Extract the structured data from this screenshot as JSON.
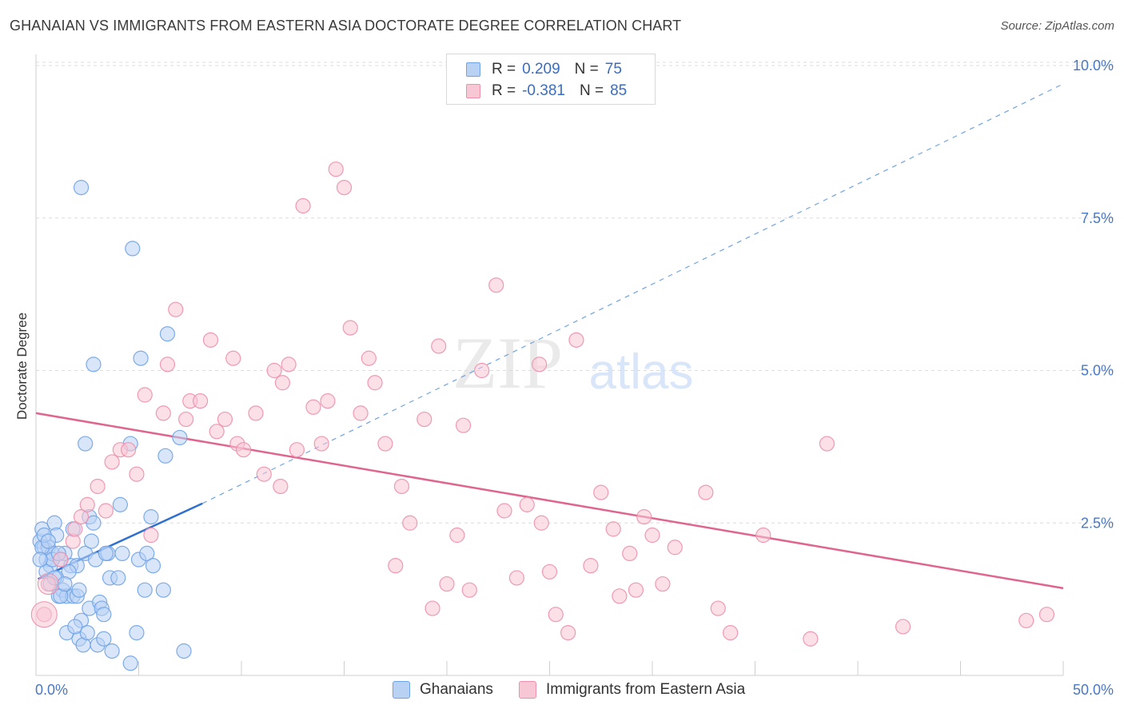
{
  "title": "GHANAIAN VS IMMIGRANTS FROM EASTERN ASIA DOCTORATE DEGREE CORRELATION CHART",
  "source": "Source: ZipAtlas.com",
  "watermark": {
    "zip": "ZIP",
    "atlas": "atlas"
  },
  "legend": {
    "r_label": "R =",
    "n_label": "N =",
    "series": [
      {
        "name": "Ghanaians",
        "r": "0.209",
        "n": "75",
        "color": "#6fa3e8",
        "fill": "#b9d2f4"
      },
      {
        "name": "Immigrants from Eastern Asia",
        "r": "-0.381",
        "n": "85",
        "color": "#ee8fab",
        "fill": "#f8c7d5"
      }
    ]
  },
  "chart_data": {
    "type": "scatter",
    "title": "GHANAIAN VS IMMIGRANTS FROM EASTERN ASIA DOCTORATE DEGREE CORRELATION CHART",
    "xlabel": "",
    "ylabel": "Doctorate Degree",
    "xlim": [
      0,
      50
    ],
    "ylim": [
      0,
      10
    ],
    "x_tick_labels": [
      "0.0%",
      "50.0%"
    ],
    "y_ticks": [
      2.5,
      5.0,
      7.5,
      10.0
    ],
    "y_tick_labels": [
      "2.5%",
      "5.0%",
      "7.5%",
      "10.0%"
    ],
    "grid": "dashed horizontal",
    "series": [
      {
        "name": "Ghanaians",
        "color": "#6fa3e8",
        "trend": {
          "x0": 0.1,
          "y0": 1.58,
          "x1": 8.1,
          "y1": 2.82,
          "x_dash_end": 50,
          "y_dash_end": 9.7
        },
        "points": [
          [
            0.2,
            2.2
          ],
          [
            0.3,
            2.4
          ],
          [
            0.4,
            2.1
          ],
          [
            0.5,
            1.9
          ],
          [
            0.6,
            2.1
          ],
          [
            0.7,
            1.8
          ],
          [
            0.8,
            2.0
          ],
          [
            0.9,
            2.5
          ],
          [
            1.0,
            2.3
          ],
          [
            1.0,
            1.6
          ],
          [
            1.1,
            1.3
          ],
          [
            1.2,
            1.9
          ],
          [
            1.3,
            1.4
          ],
          [
            1.4,
            2.0
          ],
          [
            1.5,
            1.3
          ],
          [
            1.5,
            0.7
          ],
          [
            1.7,
            1.8
          ],
          [
            1.8,
            1.3
          ],
          [
            1.8,
            2.4
          ],
          [
            2.0,
            1.8
          ],
          [
            2.0,
            1.3
          ],
          [
            2.1,
            0.6
          ],
          [
            2.2,
            0.9
          ],
          [
            2.3,
            0.5
          ],
          [
            2.4,
            2.0
          ],
          [
            2.5,
            0.7
          ],
          [
            2.6,
            2.6
          ],
          [
            2.6,
            1.1
          ],
          [
            2.7,
            2.2
          ],
          [
            2.8,
            2.5
          ],
          [
            2.9,
            1.9
          ],
          [
            3.0,
            0.5
          ],
          [
            3.1,
            1.2
          ],
          [
            3.2,
            1.1
          ],
          [
            3.3,
            0.6
          ],
          [
            3.3,
            1.0
          ],
          [
            3.5,
            2.0
          ],
          [
            3.6,
            1.6
          ],
          [
            3.7,
            0.4
          ],
          [
            4.0,
            1.6
          ],
          [
            4.1,
            2.8
          ],
          [
            4.2,
            2.0
          ],
          [
            4.6,
            0.2
          ],
          [
            4.6,
            3.8
          ],
          [
            4.9,
            0.7
          ],
          [
            5.0,
            1.9
          ],
          [
            5.1,
            5.2
          ],
          [
            5.3,
            1.4
          ],
          [
            5.4,
            2.0
          ],
          [
            5.6,
            2.6
          ],
          [
            5.7,
            1.8
          ],
          [
            6.2,
            1.4
          ],
          [
            6.3,
            3.6
          ],
          [
            6.4,
            5.6
          ],
          [
            7.0,
            3.9
          ],
          [
            7.2,
            0.4
          ],
          [
            2.2,
            8.0
          ],
          [
            4.7,
            7.0
          ],
          [
            2.8,
            5.1
          ],
          [
            2.4,
            3.8
          ],
          [
            0.3,
            2.1
          ],
          [
            0.5,
            1.7
          ],
          [
            0.7,
            1.5
          ],
          [
            0.9,
            1.6
          ],
          [
            1.2,
            1.3
          ],
          [
            1.6,
            1.7
          ],
          [
            1.9,
            0.8
          ],
          [
            2.1,
            1.4
          ],
          [
            3.4,
            2.0
          ],
          [
            0.4,
            2.3
          ],
          [
            0.6,
            2.2
          ],
          [
            0.8,
            1.9
          ],
          [
            1.1,
            2.0
          ],
          [
            1.4,
            1.5
          ],
          [
            0.2,
            1.9
          ]
        ]
      },
      {
        "name": "Immigrants from Eastern Asia",
        "color": "#ee8fab",
        "trend": {
          "x0": 0,
          "y0": 4.3,
          "x1": 50,
          "y1": 1.43
        },
        "points": [
          [
            0.4,
            1.0
          ],
          [
            0.6,
            1.5
          ],
          [
            1.2,
            1.9
          ],
          [
            1.8,
            2.2
          ],
          [
            1.9,
            2.4
          ],
          [
            2.2,
            2.6
          ],
          [
            2.5,
            2.8
          ],
          [
            3.0,
            3.1
          ],
          [
            3.4,
            2.7
          ],
          [
            3.7,
            3.5
          ],
          [
            4.1,
            3.7
          ],
          [
            4.5,
            3.7
          ],
          [
            4.9,
            3.3
          ],
          [
            5.3,
            4.6
          ],
          [
            5.6,
            2.3
          ],
          [
            6.2,
            4.3
          ],
          [
            6.4,
            5.1
          ],
          [
            6.8,
            6.0
          ],
          [
            7.3,
            4.2
          ],
          [
            7.5,
            4.5
          ],
          [
            8.0,
            4.5
          ],
          [
            8.5,
            5.5
          ],
          [
            8.8,
            4.0
          ],
          [
            9.2,
            4.2
          ],
          [
            9.6,
            5.2
          ],
          [
            9.8,
            3.8
          ],
          [
            10.1,
            3.7
          ],
          [
            10.7,
            4.3
          ],
          [
            11.1,
            3.3
          ],
          [
            11.6,
            5.0
          ],
          [
            11.9,
            3.1
          ],
          [
            12.3,
            5.1
          ],
          [
            12.7,
            3.7
          ],
          [
            13.0,
            7.7
          ],
          [
            13.5,
            4.4
          ],
          [
            13.9,
            3.8
          ],
          [
            14.2,
            4.5
          ],
          [
            14.6,
            8.3
          ],
          [
            15.0,
            8.0
          ],
          [
            15.3,
            5.7
          ],
          [
            15.8,
            4.3
          ],
          [
            16.2,
            5.2
          ],
          [
            16.5,
            4.8
          ],
          [
            17.0,
            3.8
          ],
          [
            17.5,
            1.8
          ],
          [
            17.8,
            3.1
          ],
          [
            18.2,
            2.5
          ],
          [
            18.9,
            4.2
          ],
          [
            19.3,
            1.1
          ],
          [
            19.6,
            5.4
          ],
          [
            20.0,
            1.5
          ],
          [
            20.5,
            2.3
          ],
          [
            20.8,
            4.1
          ],
          [
            21.1,
            1.4
          ],
          [
            21.7,
            5.0
          ],
          [
            22.4,
            6.4
          ],
          [
            22.8,
            2.7
          ],
          [
            23.4,
            1.6
          ],
          [
            23.9,
            2.8
          ],
          [
            24.6,
            2.5
          ],
          [
            25.0,
            1.7
          ],
          [
            25.3,
            1.0
          ],
          [
            25.9,
            0.7
          ],
          [
            26.3,
            5.5
          ],
          [
            27.0,
            1.8
          ],
          [
            27.5,
            3.0
          ],
          [
            28.1,
            2.4
          ],
          [
            28.4,
            1.3
          ],
          [
            28.9,
            2.0
          ],
          [
            29.2,
            1.4
          ],
          [
            29.6,
            2.6
          ],
          [
            30.0,
            2.3
          ],
          [
            30.5,
            1.5
          ],
          [
            31.1,
            2.1
          ],
          [
            32.6,
            3.0
          ],
          [
            33.2,
            1.1
          ],
          [
            33.8,
            0.7
          ],
          [
            35.4,
            2.3
          ],
          [
            37.7,
            0.6
          ],
          [
            38.5,
            3.8
          ],
          [
            42.2,
            0.8
          ],
          [
            48.2,
            0.9
          ],
          [
            49.2,
            1.0
          ],
          [
            24.5,
            5.1
          ],
          [
            12.0,
            4.8
          ]
        ]
      }
    ]
  }
}
